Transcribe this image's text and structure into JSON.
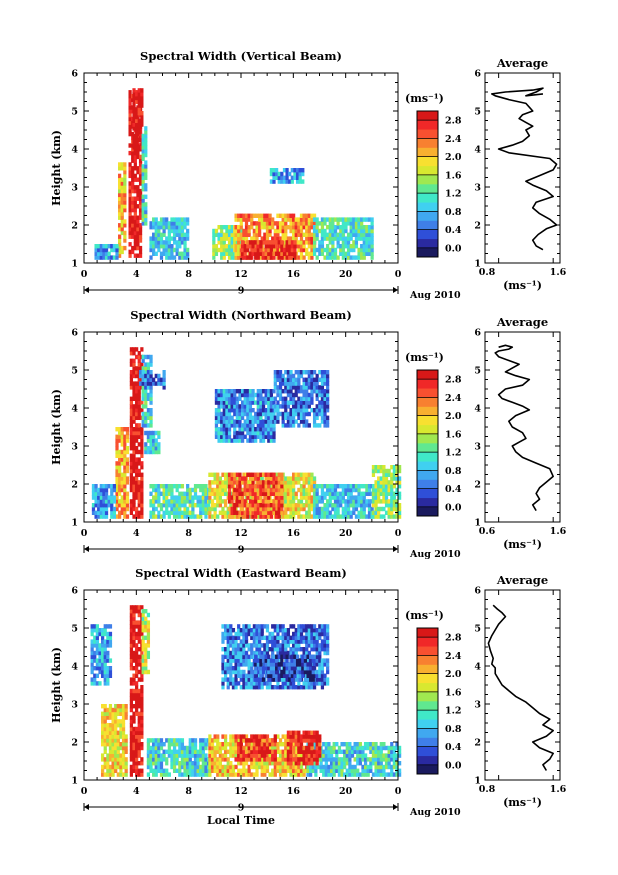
{
  "chart_data": [
    {
      "type": "heatmap",
      "title": "Spectral Width (Vertical Beam)",
      "ylabel": "Height (km)",
      "xlabel": "",
      "x_ticks": [
        "0",
        "4",
        "8",
        "12",
        "16",
        "20",
        "0"
      ],
      "y_ticks": [
        "1",
        "2",
        "3",
        "4",
        "5",
        "6"
      ],
      "xlim": [
        0,
        24
      ],
      "ylim": [
        1,
        6
      ],
      "date_day": "9",
      "date_label": "Aug 2010",
      "colorbar": {
        "unit_label": "(ms⁻¹)",
        "ticks": [
          "0.0",
          "0.4",
          "0.8",
          "1.2",
          "1.6",
          "2.0",
          "2.4",
          "2.8"
        ],
        "range": [
          -0.2,
          3.0
        ],
        "colors": [
          "#1a1a5e",
          "#2a2aa0",
          "#2f4fd8",
          "#3f7fe8",
          "#40a8f0",
          "#40d0f0",
          "#40e8c8",
          "#60e890",
          "#a0e850",
          "#d8e830",
          "#f8e030",
          "#f8b030",
          "#f88030",
          "#f85030",
          "#f02828",
          "#d81818"
        ]
      },
      "clusters": [
        {
          "x": [
            2.6,
            3.2
          ],
          "y": [
            1.15,
            3.6
          ],
          "v": 2.0
        },
        {
          "x": [
            3.4,
            4.4
          ],
          "y": [
            1.15,
            5.5
          ],
          "v": 2.9
        },
        {
          "x": [
            3.7,
            4.4
          ],
          "y": [
            4.0,
            5.5
          ],
          "v": 3.0
        },
        {
          "x": [
            4.4,
            4.8
          ],
          "y": [
            2.0,
            4.6
          ],
          "v": 1.0
        },
        {
          "x": [
            0.8,
            2.6
          ],
          "y": [
            1.1,
            1.5
          ],
          "v": 0.7
        },
        {
          "x": [
            5.0,
            8.0
          ],
          "y": [
            1.1,
            2.2
          ],
          "v": 0.9
        },
        {
          "x": [
            9.8,
            12.0
          ],
          "y": [
            1.1,
            2.0
          ],
          "v": 1.4
        },
        {
          "x": [
            11.5,
            17.5
          ],
          "y": [
            1.1,
            2.3
          ],
          "v": 2.2
        },
        {
          "x": [
            12.0,
            16.0
          ],
          "y": [
            1.1,
            1.6
          ],
          "v": 2.8
        },
        {
          "x": [
            17.5,
            22.0
          ],
          "y": [
            1.1,
            2.2
          ],
          "v": 1.1
        },
        {
          "x": [
            14.2,
            16.6
          ],
          "y": [
            3.1,
            3.5
          ],
          "v": 0.7
        }
      ],
      "profile": {
        "title": "Average",
        "xlabel": "(ms⁻¹)",
        "x_ticks": [
          "0.8",
          "1.6"
        ],
        "xlim": [
          0.6,
          1.7
        ],
        "y_ticks": [
          "1",
          "2",
          "3",
          "4",
          "5",
          "6"
        ],
        "ylim": [
          1,
          6
        ],
        "x": [
          1.45,
          1.35,
          1.3,
          1.38,
          1.5,
          1.65,
          1.55,
          1.4,
          1.3,
          1.35,
          1.6,
          1.5,
          1.3,
          1.2,
          1.4,
          1.6,
          1.65,
          1.55,
          0.95,
          0.8,
          1.0,
          1.15,
          1.25,
          1.2,
          1.3,
          1.2,
          1.1,
          1.15,
          1.3,
          1.25,
          1.2,
          0.95,
          0.75,
          0.7,
          0.9,
          1.3,
          1.45,
          1.35,
          1.2,
          1.45
        ],
        "y": [
          1.35,
          1.45,
          1.6,
          1.75,
          1.9,
          2.0,
          2.15,
          2.3,
          2.45,
          2.6,
          2.75,
          2.9,
          3.05,
          3.15,
          3.3,
          3.45,
          3.6,
          3.75,
          3.9,
          4.0,
          4.1,
          4.2,
          4.35,
          4.5,
          4.6,
          4.7,
          4.8,
          4.9,
          5.0,
          5.1,
          5.2,
          5.3,
          5.4,
          5.45,
          5.5,
          5.55,
          5.6,
          5.5,
          5.4,
          5.45
        ]
      }
    },
    {
      "type": "heatmap",
      "title": "Spectral Width (Northward Beam)",
      "ylabel": "Height (km)",
      "xlabel": "",
      "x_ticks": [
        "0",
        "4",
        "8",
        "12",
        "16",
        "20",
        "0"
      ],
      "y_ticks": [
        "1",
        "2",
        "3",
        "4",
        "5",
        "6"
      ],
      "xlim": [
        0,
        24
      ],
      "ylim": [
        1,
        6
      ],
      "date_day": "9",
      "date_label": "Aug 2010",
      "colorbar": {
        "unit_label": "(ms⁻¹)",
        "ticks": [
          "0.0",
          "0.4",
          "0.8",
          "1.2",
          "1.6",
          "2.0",
          "2.4",
          "2.8"
        ],
        "range": [
          -0.2,
          3.0
        ],
        "colors": [
          "#1a1a5e",
          "#2a2aa0",
          "#2f4fd8",
          "#3f7fe8",
          "#40a8f0",
          "#40d0f0",
          "#40e8c8",
          "#60e890",
          "#a0e850",
          "#d8e830",
          "#f8e030",
          "#f8b030",
          "#f88030",
          "#f85030",
          "#f02828",
          "#d81818"
        ]
      },
      "clusters": [
        {
          "x": [
            2.4,
            3.3
          ],
          "y": [
            1.1,
            3.5
          ],
          "v": 2.1
        },
        {
          "x": [
            3.5,
            4.4
          ],
          "y": [
            1.1,
            5.5
          ],
          "v": 2.9
        },
        {
          "x": [
            4.4,
            5.2
          ],
          "y": [
            3.5,
            5.3
          ],
          "v": 1.0
        },
        {
          "x": [
            4.2,
            6.2
          ],
          "y": [
            4.5,
            4.9
          ],
          "v": 0.5
        },
        {
          "x": [
            4.6,
            5.8
          ],
          "y": [
            2.8,
            3.4
          ],
          "v": 0.9
        },
        {
          "x": [
            0.6,
            2.4
          ],
          "y": [
            1.1,
            2.0
          ],
          "v": 0.7
        },
        {
          "x": [
            5.0,
            9.5
          ],
          "y": [
            1.1,
            2.0
          ],
          "v": 1.2
        },
        {
          "x": [
            9.5,
            17.5
          ],
          "y": [
            1.1,
            2.3
          ],
          "v": 1.8
        },
        {
          "x": [
            11.0,
            15.0
          ],
          "y": [
            1.1,
            2.3
          ],
          "v": 2.5
        },
        {
          "x": [
            17.5,
            22.0
          ],
          "y": [
            1.1,
            2.0
          ],
          "v": 0.9
        },
        {
          "x": [
            22.0,
            24.0
          ],
          "y": [
            1.1,
            2.5
          ],
          "v": 1.4
        },
        {
          "x": [
            10.0,
            14.5
          ],
          "y": [
            3.1,
            4.4
          ],
          "v": 0.6
        },
        {
          "x": [
            14.5,
            18.5
          ],
          "y": [
            3.5,
            4.9
          ],
          "v": 0.5
        }
      ],
      "profile": {
        "title": "Average",
        "xlabel": "(ms⁻¹)",
        "x_ticks": [
          "0.6",
          "1.6"
        ],
        "xlim": [
          0.6,
          1.7
        ],
        "y_ticks": [
          "1",
          "2",
          "3",
          "4",
          "5",
          "6"
        ],
        "ylim": [
          1,
          6
        ],
        "x": [
          1.35,
          1.3,
          1.4,
          1.35,
          1.4,
          1.5,
          1.6,
          1.55,
          1.35,
          1.15,
          1.05,
          1.0,
          1.1,
          1.2,
          1.15,
          1.0,
          0.95,
          1.05,
          1.25,
          1.15,
          1.0,
          0.85,
          0.8,
          0.9,
          1.15,
          1.25,
          1.05,
          0.9,
          1.0,
          1.1,
          0.95,
          0.8,
          0.75,
          0.8,
          0.95,
          1.0,
          0.9,
          0.8
        ],
        "y": [
          1.3,
          1.45,
          1.6,
          1.75,
          1.9,
          2.05,
          2.2,
          2.4,
          2.55,
          2.7,
          2.85,
          3.0,
          3.1,
          3.2,
          3.35,
          3.5,
          3.65,
          3.8,
          3.95,
          4.05,
          4.15,
          4.25,
          4.35,
          4.5,
          4.6,
          4.75,
          4.85,
          4.95,
          5.05,
          5.15,
          5.25,
          5.35,
          5.45,
          5.5,
          5.55,
          5.6,
          5.65,
          5.6
        ]
      }
    },
    {
      "type": "heatmap",
      "title": "Spectral Width (Eastward Beam)",
      "ylabel": "Height (km)",
      "xlabel": "Local Time",
      "x_ticks": [
        "0",
        "4",
        "8",
        "12",
        "16",
        "20",
        "0"
      ],
      "y_ticks": [
        "1",
        "2",
        "3",
        "4",
        "5",
        "6"
      ],
      "xlim": [
        0,
        24
      ],
      "ylim": [
        1,
        6
      ],
      "date_day": "9",
      "date_label": "Aug 2010",
      "colorbar": {
        "unit_label": "(ms⁻¹)",
        "ticks": [
          "0.0",
          "0.4",
          "0.8",
          "1.2",
          "1.6",
          "2.0",
          "2.4",
          "2.8"
        ],
        "range": [
          -0.2,
          3.0
        ],
        "colors": [
          "#1a1a5e",
          "#2a2aa0",
          "#2f4fd8",
          "#3f7fe8",
          "#40a8f0",
          "#40d0f0",
          "#40e8c8",
          "#60e890",
          "#a0e850",
          "#d8e830",
          "#f8e030",
          "#f8b030",
          "#f88030",
          "#f85030",
          "#f02828",
          "#d81818"
        ]
      },
      "clusters": [
        {
          "x": [
            1.3,
            3.3
          ],
          "y": [
            1.1,
            3.0
          ],
          "v": 1.9
        },
        {
          "x": [
            3.5,
            4.4
          ],
          "y": [
            1.1,
            5.5
          ],
          "v": 2.9
        },
        {
          "x": [
            4.4,
            5.0
          ],
          "y": [
            3.8,
            5.4
          ],
          "v": 1.6
        },
        {
          "x": [
            0.5,
            2.0
          ],
          "y": [
            3.5,
            5.0
          ],
          "v": 0.7
        },
        {
          "x": [
            4.8,
            9.5
          ],
          "y": [
            1.1,
            2.1
          ],
          "v": 1.0
        },
        {
          "x": [
            9.5,
            17.0
          ],
          "y": [
            1.1,
            2.2
          ],
          "v": 2.0
        },
        {
          "x": [
            11.5,
            14.5
          ],
          "y": [
            1.5,
            2.2
          ],
          "v": 2.6
        },
        {
          "x": [
            17.0,
            24.0
          ],
          "y": [
            1.1,
            2.0
          ],
          "v": 1.0
        },
        {
          "x": [
            10.5,
            18.5
          ],
          "y": [
            3.4,
            5.0
          ],
          "v": 0.5
        },
        {
          "x": [
            13.0,
            17.5
          ],
          "y": [
            3.6,
            4.2
          ],
          "v": 0.3
        },
        {
          "x": [
            15.5,
            18.0
          ],
          "y": [
            1.4,
            2.3
          ],
          "v": 2.8
        }
      ],
      "profile": {
        "title": "Average",
        "xlabel": "(ms⁻¹)",
        "x_ticks": [
          "0.8",
          "1.6"
        ],
        "xlim": [
          0.6,
          1.7
        ],
        "y_ticks": [
          "1",
          "2",
          "3",
          "4",
          "5",
          "6"
        ],
        "ylim": [
          1,
          6
        ],
        "x": [
          1.5,
          1.45,
          1.55,
          1.6,
          1.4,
          1.3,
          1.5,
          1.6,
          1.45,
          1.55,
          1.4,
          1.3,
          1.2,
          1.05,
          0.95,
          0.85,
          0.8,
          0.75,
          0.75,
          0.7,
          0.72,
          0.68,
          0.65,
          0.7,
          0.75,
          0.8,
          0.85,
          0.9,
          0.85,
          0.78,
          0.72
        ],
        "y": [
          1.25,
          1.4,
          1.55,
          1.7,
          1.85,
          2.0,
          2.15,
          2.3,
          2.45,
          2.6,
          2.75,
          2.9,
          3.05,
          3.2,
          3.35,
          3.5,
          3.65,
          3.8,
          3.95,
          4.05,
          4.2,
          4.4,
          4.6,
          4.8,
          4.95,
          5.1,
          5.2,
          5.3,
          5.4,
          5.5,
          5.6
        ]
      }
    }
  ]
}
